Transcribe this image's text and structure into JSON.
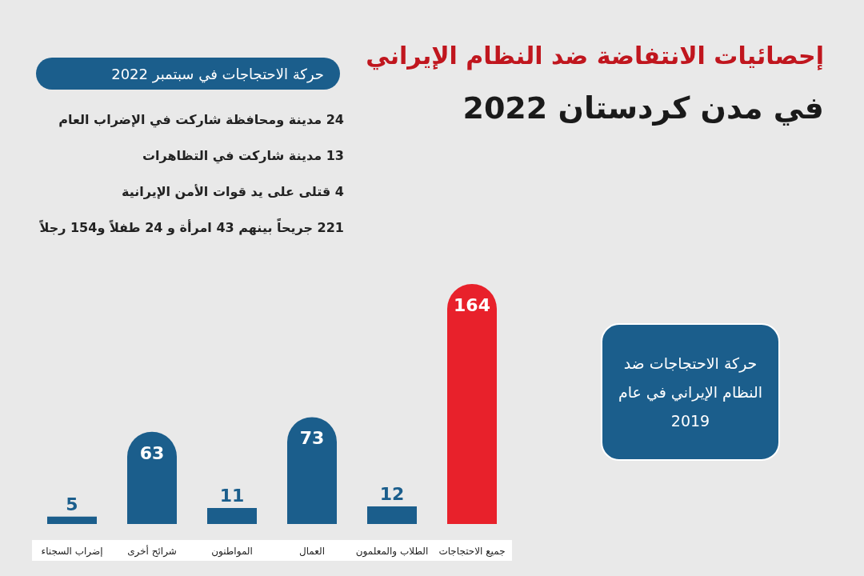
{
  "chart_data": {
    "type": "bar",
    "title": "إحصائيات الانتفاضة ضد النظام الإيراني",
    "subtitle": "في مدن كردستان 2022",
    "categories": [
      "إضراب السجناء",
      "شرائح أخرى",
      "المواطنون",
      "العمال",
      "الطلاب والمعلمون",
      "جميع الاحتجاجات"
    ],
    "values": [
      5,
      63,
      11,
      73,
      12,
      164
    ],
    "colors": [
      "#1b5e8c",
      "#1b5e8c",
      "#1b5e8c",
      "#1b5e8c",
      "#1b5e8c",
      "#e8212b"
    ],
    "data_labels": true,
    "annotations": [
      "حركة الاحتجاجات في سبتمبر 2022",
      "24 مدينة ومحافظة شاركت في الإضراب العام",
      "13 مدينة شاركت في التظاهرات",
      "4 قتلى على يد قوات الأمن الإيرانية",
      "221 جريحاً بينهم 43 امرأة و 24 طفلاً و154 رجلاً",
      "حركة الاحتجاجات ضد النظام الإيراني في عام 2019"
    ]
  }
}
